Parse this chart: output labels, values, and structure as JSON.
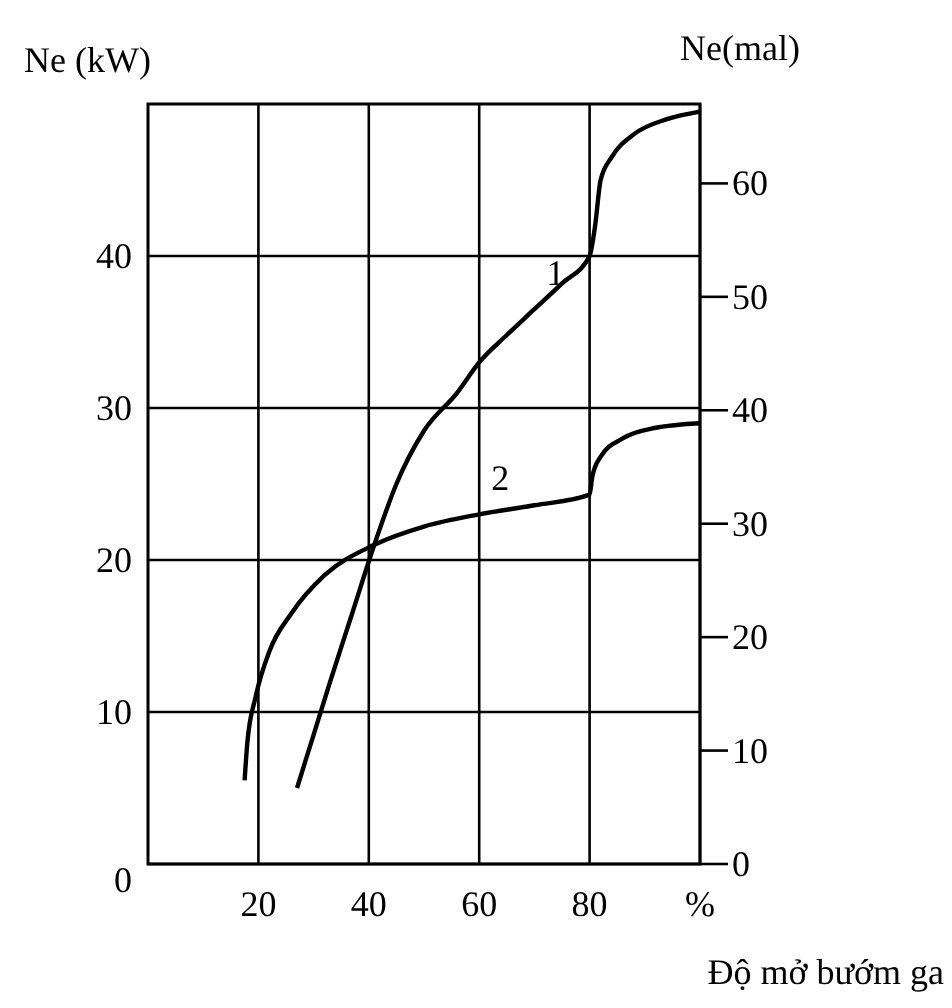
{
  "chart_data": {
    "type": "line",
    "xlabel": "Độ mở bướm ga",
    "ylabel": "Ne (kW)",
    "y2label": "Ne(mal)",
    "xlim": [
      0,
      100
    ],
    "xticks": [
      20,
      40,
      60,
      80,
      {
        "value": 100,
        "label": "%"
      }
    ],
    "ylim": [
      0,
      50
    ],
    "yticks": [
      0,
      10,
      20,
      30,
      40
    ],
    "y2lim": [
      0,
      67
    ],
    "y2ticks": [
      0,
      10,
      20,
      30,
      40,
      50,
      60
    ],
    "grid": true,
    "legend": false,
    "marker": "none",
    "line_style": "solid",
    "series": [
      {
        "name": "1",
        "color": "#000000",
        "x": [
          27,
          30,
          33,
          37,
          41,
          45,
          50,
          56,
          60,
          65,
          70,
          75,
          80,
          81,
          82,
          84,
          88,
          94,
          100
        ],
        "values": [
          5,
          8.5,
          12,
          16.5,
          21,
          25,
          28.5,
          31,
          33,
          34.8,
          36.5,
          38.2,
          40,
          42,
          45,
          46.5,
          48,
          49,
          49.5
        ]
      },
      {
        "name": "2",
        "color": "#000000",
        "x": [
          17.5,
          18,
          19.5,
          22,
          26,
          32,
          41,
          50,
          60,
          70,
          80,
          80.5,
          82,
          86,
          92,
          100
        ],
        "values": [
          5.5,
          8,
          11,
          14,
          16.5,
          19,
          21,
          22.2,
          23,
          23.6,
          24.3,
          25.5,
          26.8,
          28,
          28.7,
          29
        ]
      }
    ]
  }
}
